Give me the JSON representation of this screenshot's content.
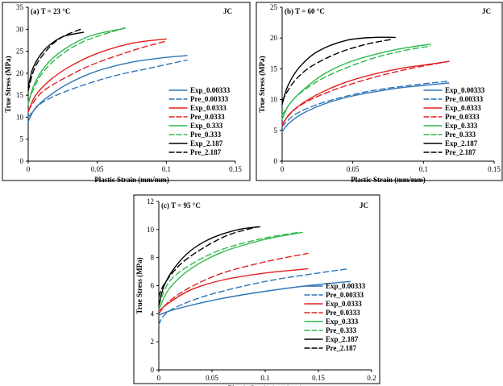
{
  "colors": {
    "blue": "#2e75b6",
    "red": "#e02020",
    "green": "#2eb84c",
    "black": "#000000"
  },
  "legend_labels": [
    "Exp_0.00333",
    "Pre_0.00333",
    "Exp_0.0333",
    "Pre_0.0333",
    "Exp_0.333",
    "Pre_0.333",
    "Exp_2.187",
    "Pre_2.187"
  ],
  "chart_data": [
    {
      "type": "line",
      "panel_label": "(a) T = 23 °C",
      "model_label": "JC",
      "xlabel": "Plastic Strain (mm/mm)",
      "ylabel": "True Stress (MPa)",
      "xlim": [
        0,
        0.15
      ],
      "ylim": [
        0,
        35
      ],
      "xticks": [
        "0",
        "0.05",
        "0.1",
        "0.15"
      ],
      "xtick_values": [
        0,
        0.05,
        0.1,
        0.15
      ],
      "yticks": [
        "0",
        "5",
        "10",
        "15",
        "20",
        "25",
        "30",
        "35"
      ],
      "ytick_values": [
        0,
        5,
        10,
        15,
        20,
        25,
        30,
        35
      ],
      "series": [
        {
          "name": "Exp_0.00333",
          "color": "blue",
          "dash": false,
          "points": [
            [
              0,
              9
            ],
            [
              0.005,
              12
            ],
            [
              0.015,
              14.8
            ],
            [
              0.03,
              17.8
            ],
            [
              0.05,
              20.5
            ],
            [
              0.075,
              22.5
            ],
            [
              0.1,
              23.6
            ],
            [
              0.115,
              24
            ]
          ]
        },
        {
          "name": "Pre_0.00333",
          "color": "blue",
          "dash": true,
          "points": [
            [
              0,
              10
            ],
            [
              0.01,
              13.3
            ],
            [
              0.03,
              16.2
            ],
            [
              0.06,
              19.2
            ],
            [
              0.09,
              21.3
            ],
            [
              0.115,
              23
            ]
          ]
        },
        {
          "name": "Exp_0.0333",
          "color": "red",
          "dash": false,
          "points": [
            [
              0,
              11.2
            ],
            [
              0.005,
              14.8
            ],
            [
              0.015,
              18.2
            ],
            [
              0.03,
              21.5
            ],
            [
              0.05,
              24.5
            ],
            [
              0.075,
              26.8
            ],
            [
              0.1,
              27.8
            ]
          ]
        },
        {
          "name": "Pre_0.0333",
          "color": "red",
          "dash": true,
          "points": [
            [
              0,
              11.5
            ],
            [
              0.01,
              15.7
            ],
            [
              0.03,
              19.5
            ],
            [
              0.05,
              22.4
            ],
            [
              0.08,
              25.6
            ],
            [
              0.1,
              27.3
            ]
          ]
        },
        {
          "name": "Exp_0.333",
          "color": "green",
          "dash": false,
          "points": [
            [
              0,
              13
            ],
            [
              0.004,
              17.2
            ],
            [
              0.012,
              21.5
            ],
            [
              0.025,
              25.2
            ],
            [
              0.045,
              28.5
            ],
            [
              0.07,
              30.2
            ]
          ]
        },
        {
          "name": "Pre_0.333",
          "color": "green",
          "dash": true,
          "points": [
            [
              0,
              13.5
            ],
            [
              0.008,
              19
            ],
            [
              0.02,
              23.2
            ],
            [
              0.04,
              27.2
            ],
            [
              0.07,
              30.3
            ]
          ]
        },
        {
          "name": "Exp_2.187",
          "color": "black",
          "dash": false,
          "points": [
            [
              0,
              16.8
            ],
            [
              0.003,
              20.8
            ],
            [
              0.008,
              23.8
            ],
            [
              0.015,
              26.3
            ],
            [
              0.025,
              28.3
            ],
            [
              0.04,
              29.3
            ]
          ]
        },
        {
          "name": "Pre_2.187",
          "color": "black",
          "dash": true,
          "points": [
            [
              0,
              16
            ],
            [
              0.005,
              21.4
            ],
            [
              0.015,
              25.8
            ],
            [
              0.025,
              28.3
            ],
            [
              0.038,
              30
            ]
          ]
        }
      ]
    },
    {
      "type": "line",
      "panel_label": "(b) T = 60 °C",
      "model_label": "JC",
      "xlabel": "Plastic Strain (mm/mm)",
      "ylabel": "True Stress (MPa)",
      "xlim": [
        0,
        0.15
      ],
      "ylim": [
        0,
        25
      ],
      "xticks": [
        "0",
        "0.05",
        "0.1",
        "0.15"
      ],
      "xtick_values": [
        0,
        0.05,
        0.1,
        0.15
      ],
      "yticks": [
        "0",
        "5",
        "10",
        "15",
        "20",
        "25"
      ],
      "ytick_values": [
        0,
        5,
        10,
        15,
        20,
        25
      ],
      "series": [
        {
          "name": "Exp_0.00333",
          "color": "blue",
          "dash": false,
          "points": [
            [
              0,
              4.8
            ],
            [
              0.005,
              6.2
            ],
            [
              0.015,
              7.8
            ],
            [
              0.03,
              9.3
            ],
            [
              0.05,
              10.6
            ],
            [
              0.08,
              11.8
            ],
            [
              0.1,
              12.3
            ],
            [
              0.118,
              12.7
            ]
          ]
        },
        {
          "name": "Pre_0.00333",
          "color": "blue",
          "dash": true,
          "points": [
            [
              0,
              5.6
            ],
            [
              0.01,
              7.7
            ],
            [
              0.03,
              9.6
            ],
            [
              0.06,
              11.3
            ],
            [
              0.09,
              12.3
            ],
            [
              0.118,
              13
            ]
          ]
        },
        {
          "name": "Exp_0.0333",
          "color": "red",
          "dash": false,
          "points": [
            [
              0,
              5.8
            ],
            [
              0.005,
              7.6
            ],
            [
              0.015,
              9.5
            ],
            [
              0.03,
              11.4
            ],
            [
              0.05,
              13.2
            ],
            [
              0.08,
              14.9
            ],
            [
              0.1,
              15.6
            ],
            [
              0.118,
              16.2
            ]
          ]
        },
        {
          "name": "Pre_0.0333",
          "color": "red",
          "dash": true,
          "points": [
            [
              0,
              6
            ],
            [
              0.01,
              8.6
            ],
            [
              0.03,
              11
            ],
            [
              0.06,
              13.3
            ],
            [
              0.09,
              15
            ],
            [
              0.118,
              16.2
            ]
          ]
        },
        {
          "name": "Exp_0.333",
          "color": "green",
          "dash": false,
          "points": [
            [
              0,
              6.8
            ],
            [
              0.005,
              9.2
            ],
            [
              0.015,
              11.6
            ],
            [
              0.03,
              14.2
            ],
            [
              0.05,
              16.3
            ],
            [
              0.08,
              18.1
            ],
            [
              0.105,
              19
            ]
          ]
        },
        {
          "name": "Pre_0.333",
          "color": "green",
          "dash": true,
          "points": [
            [
              0,
              7.5
            ],
            [
              0.01,
              10.5
            ],
            [
              0.03,
              13.6
            ],
            [
              0.06,
              16.4
            ],
            [
              0.085,
              17.9
            ],
            [
              0.105,
              18.7
            ]
          ]
        },
        {
          "name": "Exp_2.187",
          "color": "black",
          "dash": false,
          "points": [
            [
              0,
              9.2
            ],
            [
              0.004,
              12.2
            ],
            [
              0.012,
              15.2
            ],
            [
              0.025,
              17.8
            ],
            [
              0.045,
              19.6
            ],
            [
              0.065,
              20.1
            ],
            [
              0.08,
              20.1
            ]
          ]
        },
        {
          "name": "Pre_2.187",
          "color": "black",
          "dash": true,
          "points": [
            [
              0,
              9.8
            ],
            [
              0.008,
              12.8
            ],
            [
              0.02,
              15.3
            ],
            [
              0.04,
              17.6
            ],
            [
              0.06,
              19
            ],
            [
              0.078,
              19.8
            ]
          ]
        }
      ]
    },
    {
      "type": "line",
      "panel_label": "(c) T = 95 °C",
      "model_label": "JC",
      "xlabel": "Plastic Strain (mm/mm)",
      "ylabel": "True Stress (MPa)",
      "xlim": [
        0,
        0.2
      ],
      "ylim": [
        0,
        12
      ],
      "xticks": [
        "0",
        "0.05",
        "0.1",
        "0.15",
        "0.2"
      ],
      "xtick_values": [
        0,
        0.05,
        0.1,
        0.15,
        0.2
      ],
      "yticks": [
        "0",
        "2",
        "4",
        "6",
        "8",
        "10",
        "12"
      ],
      "ytick_values": [
        0,
        2,
        4,
        6,
        8,
        10,
        12
      ],
      "series": [
        {
          "name": "Exp_0.00333",
          "color": "blue",
          "dash": false,
          "points": [
            [
              0,
              3.9
            ],
            [
              0.01,
              4.2
            ],
            [
              0.03,
              4.6
            ],
            [
              0.06,
              5.1
            ],
            [
              0.1,
              5.6
            ],
            [
              0.14,
              6
            ],
            [
              0.18,
              6.3
            ]
          ]
        },
        {
          "name": "Pre_0.00333",
          "color": "blue",
          "dash": true,
          "points": [
            [
              0,
              3.2
            ],
            [
              0.005,
              3.9
            ],
            [
              0.02,
              4.6
            ],
            [
              0.05,
              5.4
            ],
            [
              0.1,
              6.3
            ],
            [
              0.15,
              6.9
            ],
            [
              0.178,
              7.2
            ]
          ]
        },
        {
          "name": "Exp_0.0333",
          "color": "red",
          "dash": false,
          "points": [
            [
              0,
              4.2
            ],
            [
              0.01,
              4.8
            ],
            [
              0.03,
              5.7
            ],
            [
              0.06,
              6.4
            ],
            [
              0.1,
              6.9
            ],
            [
              0.14,
              7.2
            ]
          ]
        },
        {
          "name": "Pre_0.0333",
          "color": "red",
          "dash": true,
          "points": [
            [
              0,
              4
            ],
            [
              0.01,
              4.9
            ],
            [
              0.03,
              5.9
            ],
            [
              0.06,
              6.9
            ],
            [
              0.1,
              7.7
            ],
            [
              0.14,
              8.3
            ]
          ]
        },
        {
          "name": "Exp_0.333",
          "color": "green",
          "dash": false,
          "points": [
            [
              0,
              4.3
            ],
            [
              0.01,
              5.8
            ],
            [
              0.03,
              7.2
            ],
            [
              0.06,
              8.4
            ],
            [
              0.1,
              9.3
            ],
            [
              0.135,
              9.8
            ]
          ]
        },
        {
          "name": "Pre_0.333",
          "color": "green",
          "dash": true,
          "points": [
            [
              0,
              4.6
            ],
            [
              0.01,
              6.3
            ],
            [
              0.03,
              7.5
            ],
            [
              0.06,
              8.6
            ],
            [
              0.1,
              9.4
            ],
            [
              0.132,
              9.8
            ]
          ]
        },
        {
          "name": "Exp_2.187",
          "color": "black",
          "dash": false,
          "points": [
            [
              0,
              4.6
            ],
            [
              0.005,
              6
            ],
            [
              0.015,
              7.3
            ],
            [
              0.03,
              8.5
            ],
            [
              0.05,
              9.4
            ],
            [
              0.075,
              10
            ],
            [
              0.095,
              10.2
            ]
          ]
        },
        {
          "name": "Pre_2.187",
          "color": "black",
          "dash": true,
          "points": [
            [
              0,
              5.2
            ],
            [
              0.005,
              6.1
            ],
            [
              0.02,
              7.5
            ],
            [
              0.04,
              8.6
            ],
            [
              0.065,
              9.6
            ],
            [
              0.093,
              10.2
            ]
          ]
        }
      ]
    }
  ]
}
